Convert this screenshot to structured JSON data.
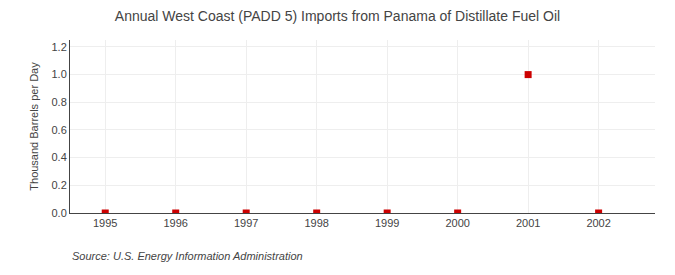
{
  "chart_data": {
    "type": "scatter",
    "title": "Annual West Coast (PADD 5) Imports from Panama of Distillate Fuel Oil",
    "ylabel": "Thousand Barrels per Day",
    "annotations": [
      "Source: U.S. Energy Information Administration"
    ],
    "x": [
      1995,
      1996,
      1997,
      1998,
      1999,
      2000,
      2001,
      2002
    ],
    "values": [
      0,
      0,
      0,
      0,
      0,
      0,
      1.0,
      0
    ],
    "color": "#cc0000",
    "marker": "square",
    "xlim": [
      1994.5,
      2002.8
    ],
    "xticks": [
      1995,
      1996,
      1997,
      1998,
      1999,
      2000,
      2001,
      2002
    ],
    "ylim": [
      0.0,
      1.25
    ],
    "yticks": [
      {
        "value": 0.0,
        "label": "0.0"
      },
      0.2,
      0.4,
      0.6,
      0.8,
      {
        "value": 1.0,
        "label": "1.0"
      },
      1.2
    ],
    "grid": true
  }
}
